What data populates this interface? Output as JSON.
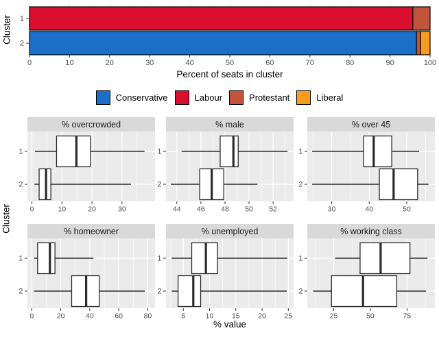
{
  "figure": {
    "background": "#FFFFFF"
  },
  "chart_data": [
    {
      "type": "bar",
      "subtype": "stacked-horizontal",
      "title": "",
      "ylabel": "Cluster",
      "xlabel": "Percent of seats in cluster",
      "categories": [
        "1",
        "2"
      ],
      "xlim": [
        0,
        100
      ],
      "x_ticks": [
        0,
        10,
        20,
        30,
        40,
        50,
        60,
        70,
        80,
        90,
        100
      ],
      "x_minor_ticks": [
        5,
        15,
        25,
        35,
        45,
        55,
        65,
        75,
        85,
        95
      ],
      "bar_outline": "#000000",
      "grid_on": true,
      "legend_position": "bottom",
      "series": [
        {
          "name": "Conservative",
          "color": "#1B6FC8",
          "values": [
            0,
            96.6
          ]
        },
        {
          "name": "Labour",
          "color": "#DA0E2E",
          "values": [
            95.7,
            0
          ]
        },
        {
          "name": "Protestant",
          "color": "#C0553B",
          "values": [
            4.3,
            1.0
          ]
        },
        {
          "name": "Liberal",
          "color": "#F79C1E",
          "values": [
            0,
            2.4
          ]
        }
      ]
    },
    {
      "type": "boxplot",
      "subtype": "horizontal-faceted",
      "ylabel": "Cluster",
      "xlabel": "% value",
      "categories": [
        "1",
        "2"
      ],
      "panel_bg": "#EBEBEB",
      "strip_bg": "#D9D9D9",
      "grid_color": "#FFFFFF",
      "box_fill": "#FFFFFF",
      "box_stroke": "#2A2A2A",
      "facets": [
        {
          "title": "% overcrowded",
          "xlim": [
            -1.5,
            41
          ],
          "ticks": [
            0,
            10,
            20,
            30
          ],
          "minor_ticks": [
            5,
            15,
            25,
            35
          ],
          "boxes": [
            {
              "cluster": "1",
              "min": 1.0,
              "q1": 8.2,
              "median": 14.8,
              "q3": 19.5,
              "max": 37.5
            },
            {
              "cluster": "2",
              "min": 0.8,
              "q1": 2.4,
              "median": 4.7,
              "q3": 6.3,
              "max": 33.0
            }
          ]
        },
        {
          "title": "% male",
          "xlim": [
            43.1,
            53.7
          ],
          "ticks": [
            44,
            46,
            48,
            50,
            52
          ],
          "minor_ticks": [
            45,
            47,
            49,
            51,
            53
          ],
          "boxes": [
            {
              "cluster": "1",
              "min": 44.4,
              "q1": 47.6,
              "median": 48.7,
              "q3": 49.1,
              "max": 53.2
            },
            {
              "cluster": "2",
              "min": 43.5,
              "q1": 45.9,
              "median": 46.9,
              "q3": 47.9,
              "max": 50.7
            }
          ]
        },
        {
          "title": "% over 45",
          "xlim": [
            23.5,
            57.5
          ],
          "ticks": [
            30,
            40,
            50
          ],
          "minor_ticks": [
            25,
            35,
            45,
            55
          ],
          "boxes": [
            {
              "cluster": "1",
              "min": 24.8,
              "q1": 38.5,
              "median": 41.2,
              "q3": 46.0,
              "max": 53.3
            },
            {
              "cluster": "2",
              "min": 24.8,
              "q1": 42.7,
              "median": 46.5,
              "q3": 52.9,
              "max": 55.8
            }
          ]
        },
        {
          "title": "% homeowner",
          "xlim": [
            -3,
            85
          ],
          "ticks": [
            0,
            20,
            40,
            60,
            80
          ],
          "minor_ticks": [
            10,
            30,
            50,
            70
          ],
          "boxes": [
            {
              "cluster": "1",
              "min": 1.5,
              "q1": 4.0,
              "median": 12.5,
              "q3": 16.0,
              "max": 42.5
            },
            {
              "cluster": "2",
              "min": 1.5,
              "q1": 27.5,
              "median": 37.5,
              "q3": 46.5,
              "max": 78.0
            }
          ]
        },
        {
          "title": "% unemployed",
          "xlim": [
            1.7,
            26
          ],
          "ticks": [
            5,
            10,
            15,
            20,
            25
          ],
          "minor_ticks": [
            2.5,
            7.5,
            12.5,
            17.5,
            22.5
          ],
          "boxes": [
            {
              "cluster": "1",
              "min": 2.8,
              "q1": 6.6,
              "median": 9.3,
              "q3": 11.5,
              "max": 24.8
            },
            {
              "cluster": "2",
              "min": 2.8,
              "q1": 4.0,
              "median": 6.9,
              "q3": 8.3,
              "max": 24.7
            }
          ]
        },
        {
          "title": "% working class",
          "xlim": [
            7,
            94
          ],
          "ticks": [
            25,
            50,
            75
          ],
          "minor_ticks": [
            12.5,
            37.5,
            62.5,
            87.5
          ],
          "boxes": [
            {
              "cluster": "1",
              "min": 26.0,
              "q1": 43.0,
              "median": 57.0,
              "q3": 77.0,
              "max": 89.0
            },
            {
              "cluster": "2",
              "min": 11.0,
              "q1": 23.5,
              "median": 45.0,
              "q3": 68.0,
              "max": 88.0
            }
          ]
        }
      ]
    }
  ]
}
